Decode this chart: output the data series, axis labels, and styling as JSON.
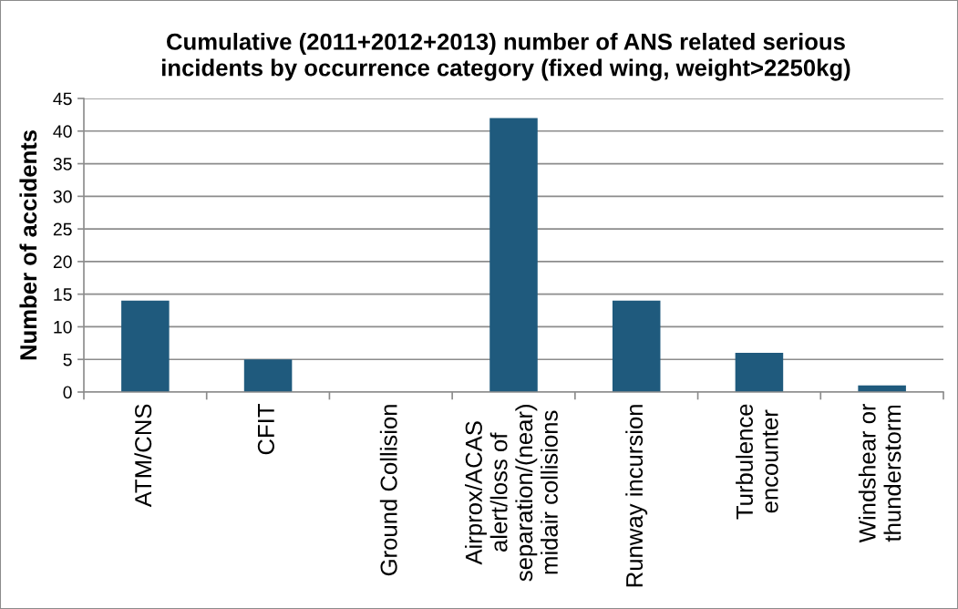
{
  "chart_data": {
    "type": "bar",
    "title": "Cumulative (2011+2012+2013) number of ANS related serious\nincidents by occurrence category (fixed wing, weight>2250kg)",
    "ylabel": "Number of accidents",
    "categories": [
      "ATM/CNS",
      "CFIT",
      "Ground Collision",
      "Airprox/ACAS\nalert/loss of\nseparation/(near)\nmidair collisions",
      "Runway incursion",
      "Turbulence\nencounter",
      "Windshear or\nthunderstorm"
    ],
    "values": [
      14,
      5,
      0,
      42,
      14,
      6,
      1
    ],
    "color": "#1f5a7d",
    "ylim": [
      0,
      45
    ],
    "yticks": [
      0,
      5,
      10,
      15,
      20,
      25,
      30,
      35,
      40,
      45
    ],
    "grid": "y"
  }
}
